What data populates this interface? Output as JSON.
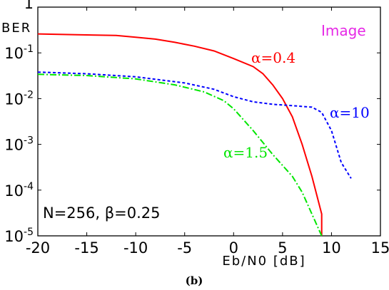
{
  "chart_data": {
    "type": "line",
    "xlabel": "Eb/N0 [dB]",
    "ylabel": "BER",
    "xlim": [
      -20,
      15
    ],
    "ylim": [
      1e-05,
      1
    ],
    "yscale": "log",
    "grid": false,
    "x_ticks": [
      "-20",
      "-15",
      "-10",
      "-5",
      "0",
      "5",
      "10",
      "15"
    ],
    "y_ticks": [
      {
        "value": 1,
        "base": "1",
        "exp": ""
      },
      {
        "value": 0.1,
        "base": "10",
        "exp": "-1"
      },
      {
        "value": 0.01,
        "base": "10",
        "exp": "-2"
      },
      {
        "value": 0.001,
        "base": "10",
        "exp": "-3"
      },
      {
        "value": 0.0001,
        "base": "10",
        "exp": "-4"
      },
      {
        "value": 1e-05,
        "base": "10",
        "exp": "-5"
      }
    ],
    "series": [
      {
        "name": "α=0.4",
        "color": "#ff0000",
        "dash": "solid",
        "x": [
          -20,
          -16,
          -12,
          -10,
          -8,
          -6,
          -4,
          -2,
          0,
          2,
          3,
          4,
          5,
          6,
          7,
          8,
          9,
          9
        ],
        "y": [
          0.26,
          0.25,
          0.24,
          0.22,
          0.2,
          0.17,
          0.14,
          0.11,
          0.075,
          0.05,
          0.035,
          0.02,
          0.01,
          0.004,
          0.001,
          0.0002,
          3e-05,
          1e-05
        ]
      },
      {
        "name": "α=10",
        "color": "#0000ff",
        "dash": "dashed",
        "x": [
          -20,
          -15,
          -10,
          -5,
          -2,
          0,
          2,
          4,
          6,
          8,
          9,
          10,
          11,
          12
        ],
        "y": [
          0.038,
          0.035,
          0.03,
          0.022,
          0.016,
          0.011,
          0.0085,
          0.0075,
          0.007,
          0.0065,
          0.005,
          0.002,
          0.0004,
          0.00018
        ]
      },
      {
        "name": "α=1.5",
        "color": "#00e600",
        "dash": "dashdot",
        "x": [
          -20,
          -15,
          -10,
          -6,
          -3,
          -1,
          0,
          2,
          4,
          6,
          7,
          8,
          9
        ],
        "y": [
          0.034,
          0.032,
          0.027,
          0.02,
          0.014,
          0.009,
          0.006,
          0.002,
          0.0006,
          0.0002,
          9e-05,
          3e-05,
          1e-05
        ]
      }
    ],
    "annotations": [
      {
        "text": "N=256, β=0.25",
        "location": "bottom-left"
      },
      {
        "text": "Image",
        "location": "top-right"
      }
    ],
    "caption": "(b)"
  }
}
